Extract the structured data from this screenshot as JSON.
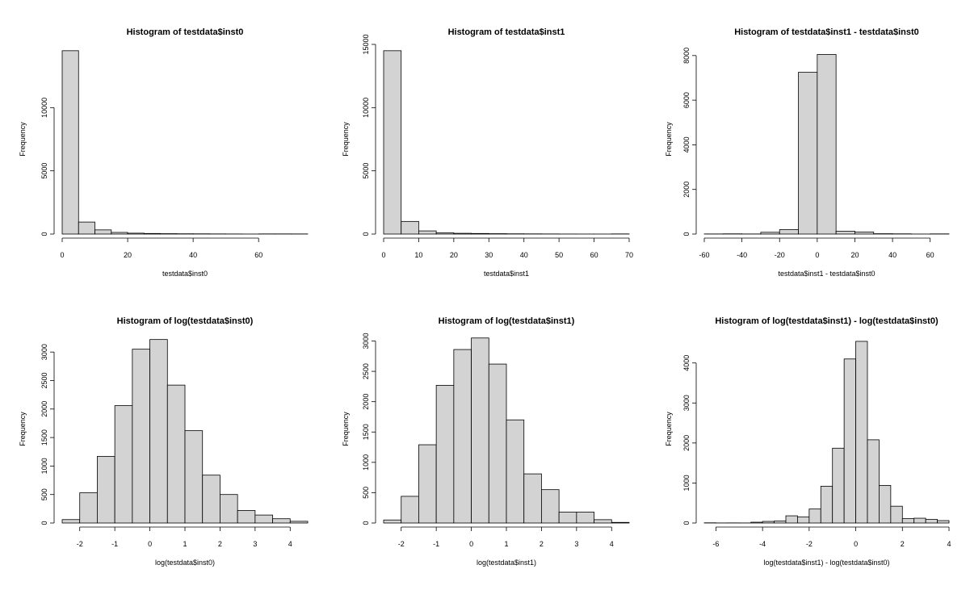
{
  "chart_data": [
    {
      "type": "bar",
      "title": "Histogram of testdata$inst0",
      "xlabel": "testdata$inst0",
      "ylabel": "Frequency",
      "breaks": [
        0,
        5,
        10,
        15,
        20,
        25,
        30,
        35,
        40,
        45,
        50,
        55,
        60,
        65,
        70,
        75
      ],
      "values": [
        14500,
        950,
        330,
        130,
        70,
        45,
        30,
        22,
        18,
        12,
        8,
        3,
        12,
        12,
        10
      ],
      "xlim": [
        0,
        75
      ],
      "ylim": [
        0,
        15000
      ],
      "xticks": [
        0,
        20,
        40,
        60
      ],
      "yticks": [
        0,
        5000,
        10000
      ],
      "grid": false
    },
    {
      "type": "bar",
      "title": "Histogram of testdata$inst1",
      "xlabel": "testdata$inst1",
      "ylabel": "Frequency",
      "breaks": [
        0,
        5,
        10,
        15,
        20,
        25,
        30,
        35,
        40,
        45,
        50,
        55,
        60,
        65,
        70
      ],
      "values": [
        14500,
        1000,
        250,
        100,
        60,
        45,
        30,
        20,
        15,
        10,
        5,
        3,
        2,
        12
      ],
      "xlim": [
        0,
        70
      ],
      "ylim": [
        0,
        15000
      ],
      "xticks": [
        0,
        10,
        20,
        30,
        40,
        50,
        60,
        70
      ],
      "yticks": [
        0,
        5000,
        10000,
        15000
      ],
      "grid": false
    },
    {
      "type": "bar",
      "title": "Histogram of testdata$inst1 - testdata$inst0",
      "xlabel": "testdata$inst1 - testdata$inst0",
      "ylabel": "Frequency",
      "breaks": [
        -60,
        -50,
        -40,
        -30,
        -20,
        -10,
        0,
        10,
        20,
        30,
        40,
        50,
        60,
        70
      ],
      "values": [
        5,
        10,
        5,
        80,
        200,
        7250,
        8050,
        130,
        90,
        15,
        10,
        2,
        8
      ],
      "xlim": [
        -60,
        70
      ],
      "ylim": [
        0,
        8500
      ],
      "xticks": [
        -60,
        -40,
        -20,
        0,
        20,
        40,
        60
      ],
      "yticks": [
        0,
        2000,
        4000,
        6000,
        8000
      ],
      "grid": false
    },
    {
      "type": "bar",
      "title": "Histogram of log(testdata$inst0)",
      "xlabel": "log(testdata$inst0)",
      "ylabel": "Frequency",
      "breaks": [
        -2.5,
        -2,
        -1.5,
        -1,
        -0.5,
        0,
        0.5,
        1,
        1.5,
        2,
        2.5,
        3,
        3.5,
        4,
        4.5
      ],
      "values": [
        60,
        530,
        1170,
        2060,
        3050,
        3220,
        2420,
        1620,
        840,
        500,
        220,
        140,
        75,
        30
      ],
      "xlim": [
        -2.5,
        4.5
      ],
      "ylim": [
        0,
        3300
      ],
      "xticks": [
        -2,
        -1,
        0,
        1,
        2,
        3,
        4
      ],
      "yticks": [
        0,
        500,
        1000,
        1500,
        2000,
        2500,
        3000
      ],
      "grid": false
    },
    {
      "type": "bar",
      "title": "Histogram of log(testdata$inst1)",
      "xlabel": "log(testdata$inst1)",
      "ylabel": "Frequency",
      "breaks": [
        -2.5,
        -2,
        -1.5,
        -1,
        -0.5,
        0,
        0.5,
        1,
        1.5,
        2,
        2.5,
        3,
        3.5,
        4,
        4.5
      ],
      "values": [
        50,
        440,
        1290,
        2270,
        2860,
        3050,
        2620,
        1700,
        810,
        550,
        180,
        180,
        55,
        10
      ],
      "xlim": [
        -2.5,
        4.5
      ],
      "ylim": [
        0,
        3100
      ],
      "xticks": [
        -2,
        -1,
        0,
        1,
        2,
        3,
        4
      ],
      "yticks": [
        0,
        500,
        1000,
        1500,
        2000,
        2500,
        3000
      ],
      "grid": false
    },
    {
      "type": "bar",
      "title": "Histogram of log(testdata$inst1) - log(testdata$inst0)",
      "xlabel": "log(testdata$inst1) - log(testdata$inst0)",
      "ylabel": "Frequency",
      "breaks": [
        -6.5,
        -6,
        -5.5,
        -5,
        -4.5,
        -4,
        -3.5,
        -3,
        -2.5,
        -2,
        -1.5,
        -1,
        -0.5,
        0,
        0.5,
        1,
        1.5,
        2,
        2.5,
        3,
        3.5,
        4
      ],
      "values": [
        5,
        2,
        3,
        2,
        20,
        40,
        50,
        180,
        150,
        350,
        920,
        1870,
        4100,
        4540,
        2080,
        940,
        420,
        110,
        120,
        90,
        60
      ],
      "xlim": [
        -6.5,
        4
      ],
      "ylim": [
        0,
        4700
      ],
      "xticks": [
        -6,
        -4,
        -2,
        0,
        2,
        4
      ],
      "yticks": [
        0,
        1000,
        2000,
        3000,
        4000
      ],
      "grid": false
    }
  ]
}
